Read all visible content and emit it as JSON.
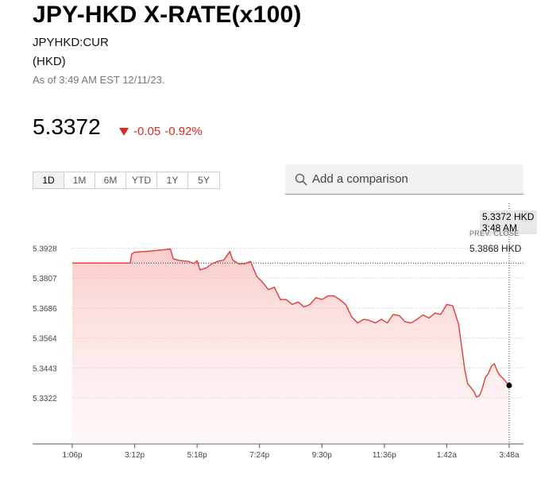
{
  "header": {
    "title": "JPY-HKD X-RATE(x100)",
    "ticker": "JPYHKD:CUR",
    "currency": "(HKD)",
    "as_of": "As of 3:49 AM EST 12/11/23."
  },
  "quote": {
    "price": "5.3372",
    "change": "-0.05",
    "change_pct": "-0.92%",
    "direction": "down",
    "down_color": "#e0281f"
  },
  "range_buttons": [
    "1D",
    "1M",
    "6M",
    "YTD",
    "1Y",
    "5Y"
  ],
  "active_range": "1D",
  "compare": {
    "placeholder": "Add a comparison",
    "icon": "search-icon"
  },
  "tooltip": {
    "price": "5.3372 HKD",
    "time": "3:48 AM"
  },
  "prev_close": {
    "label": "PREV. CLOSE",
    "value": "5.3868 HKD"
  },
  "chart_data": {
    "type": "area",
    "ylim": [
      5.318,
      5.402
    ],
    "yticks": [
      5.3928,
      5.3807,
      5.3686,
      5.3564,
      5.3443,
      5.3322
    ],
    "ytick_labels": [
      "5.3928",
      "5.3807",
      "5.3686",
      "5.3564",
      "5.3443",
      "5.3322"
    ],
    "xticks": [
      0,
      2.1,
      4.2,
      6.3,
      8.4,
      10.5,
      12.6,
      14.7
    ],
    "xtick_labels": [
      "1:06p",
      "3:12p",
      "5:18p",
      "7:24p",
      "9:30p",
      "11:36p",
      "1:42a",
      "3:48a"
    ],
    "prev_close": 5.3868,
    "line_color": "#e23b35",
    "grid": true,
    "series": [
      {
        "x": [
          0,
          1.0,
          1.95,
          2.0,
          2.1,
          2.5,
          3.0,
          3.3,
          3.4,
          3.6,
          3.9,
          4.1,
          4.2,
          4.3,
          4.5,
          4.7,
          4.9,
          5.1,
          5.3,
          5.4,
          5.6,
          5.8,
          6.0,
          6.2,
          6.4,
          6.6,
          6.8,
          7.0,
          7.2,
          7.4,
          7.6,
          7.8,
          8.0,
          8.2,
          8.4,
          8.6,
          8.8,
          9.0,
          9.2,
          9.4,
          9.6,
          9.8,
          10.0,
          10.2,
          10.4,
          10.6,
          10.8,
          11.0,
          11.2,
          11.4,
          11.6,
          11.8,
          12.0,
          12.2,
          12.4,
          12.6,
          12.8,
          13.0,
          13.2,
          13.3,
          13.5,
          13.6,
          13.7,
          13.8,
          13.9,
          14.0,
          14.1,
          14.2,
          14.3,
          14.4,
          14.5,
          14.6,
          14.7
        ],
        "values": [
          5.3868,
          5.3868,
          5.3868,
          5.3905,
          5.3912,
          5.3915,
          5.3921,
          5.3925,
          5.3885,
          5.3878,
          5.3875,
          5.3866,
          5.3878,
          5.384,
          5.3848,
          5.3865,
          5.3875,
          5.388,
          5.3915,
          5.388,
          5.3865,
          5.3865,
          5.3875,
          5.3815,
          5.379,
          5.376,
          5.377,
          5.372,
          5.372,
          5.37,
          5.371,
          5.369,
          5.37,
          5.3728,
          5.372,
          5.3735,
          5.3735,
          5.372,
          5.37,
          5.365,
          5.3625,
          5.364,
          5.3635,
          5.3625,
          5.364,
          5.3625,
          5.366,
          5.3655,
          5.363,
          5.3625,
          5.364,
          5.3658,
          5.3645,
          5.3665,
          5.366,
          5.37,
          5.3695,
          5.362,
          5.344,
          5.338,
          5.335,
          5.3325,
          5.333,
          5.336,
          5.3405,
          5.342,
          5.345,
          5.346,
          5.343,
          5.341,
          5.34,
          5.3385,
          5.3372
        ]
      }
    ]
  }
}
